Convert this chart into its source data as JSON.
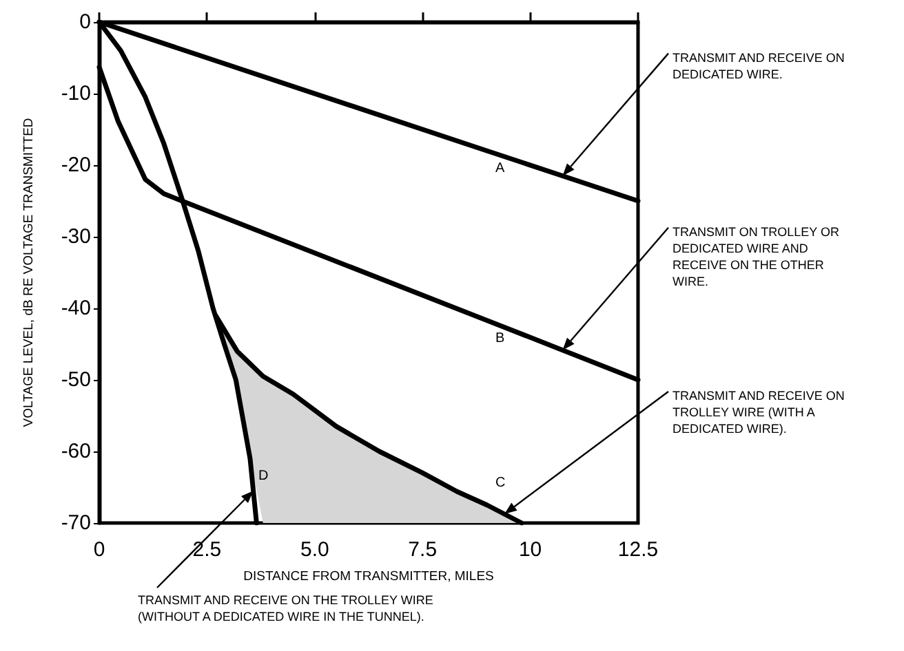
{
  "chart_data": {
    "type": "line",
    "xlabel": "DISTANCE FROM TRANSMITTER, MILES",
    "ylabel": "VOLTAGE LEVEL, dB RE VOLTAGE TRANSMITTED",
    "xlim": [
      0,
      12.5
    ],
    "ylim": [
      -70,
      0
    ],
    "xticks": [
      0,
      2.5,
      {
        "value": 5,
        "label": "5.0"
      },
      7.5,
      10,
      12.5
    ],
    "yticks": [
      -70,
      -60,
      -50,
      -40,
      -30,
      -20,
      -10,
      0
    ],
    "grid": false,
    "legend": false,
    "marker": "none",
    "line_style": "solid",
    "series": [
      {
        "name": "A",
        "color": "#000000",
        "x": [
          0,
          9,
          12.5
        ],
        "values": [
          0,
          -18,
          -25
        ]
      },
      {
        "name": "B",
        "color": "#000000",
        "x": [
          0,
          0.44,
          1.07,
          1.5,
          1.92,
          9,
          12.5
        ],
        "values": [
          -6.3,
          -13.9,
          -22,
          -24,
          -25,
          -41.7,
          -50
        ]
      },
      {
        "name": "C",
        "color": "#000000",
        "x": [
          2.7,
          3.2,
          3.8,
          4.5,
          5.5,
          6.5,
          7.5,
          8.3,
          9,
          9.8
        ],
        "values": [
          -41,
          -46,
          -49.5,
          -52,
          -56.5,
          -60,
          -63,
          -65.6,
          -67.5,
          -70
        ],
        "lower": [
          -41,
          -51.5,
          -70,
          -70,
          -70,
          -70,
          -70,
          -70,
          -70,
          -70
        ],
        "upper": [
          -41,
          -46,
          -49.5,
          -52,
          -56.5,
          -60,
          -63,
          -65.6,
          -67.5,
          -70
        ]
      },
      {
        "name": "D",
        "color": "#000000",
        "x": [
          0,
          0.5,
          1.07,
          1.5,
          1.92,
          2.3,
          2.64,
          2.9,
          3.17,
          3.5,
          3.65
        ],
        "values": [
          0,
          -4,
          -10.5,
          -17,
          -24.7,
          -32,
          -40,
          -45,
          -50,
          -61,
          -70
        ]
      }
    ],
    "annotations": [
      "TRANSMIT AND RECEIVE ON\nDEDICATED WIRE.",
      "TRANSMIT ON TROLLEY OR\nDEDICATED WIRE AND\nRECEIVE ON THE OTHER\nWIRE.",
      "TRANSMIT AND RECEIVE ON\nTROLLEY WIRE (WITH A\nDEDICATED WIRE).",
      "TRANSMIT AND RECEIVE ON THE TROLLEY WIRE\n(WITHOUT A DEDICATED WIRE IN THE TUNNEL)."
    ]
  }
}
